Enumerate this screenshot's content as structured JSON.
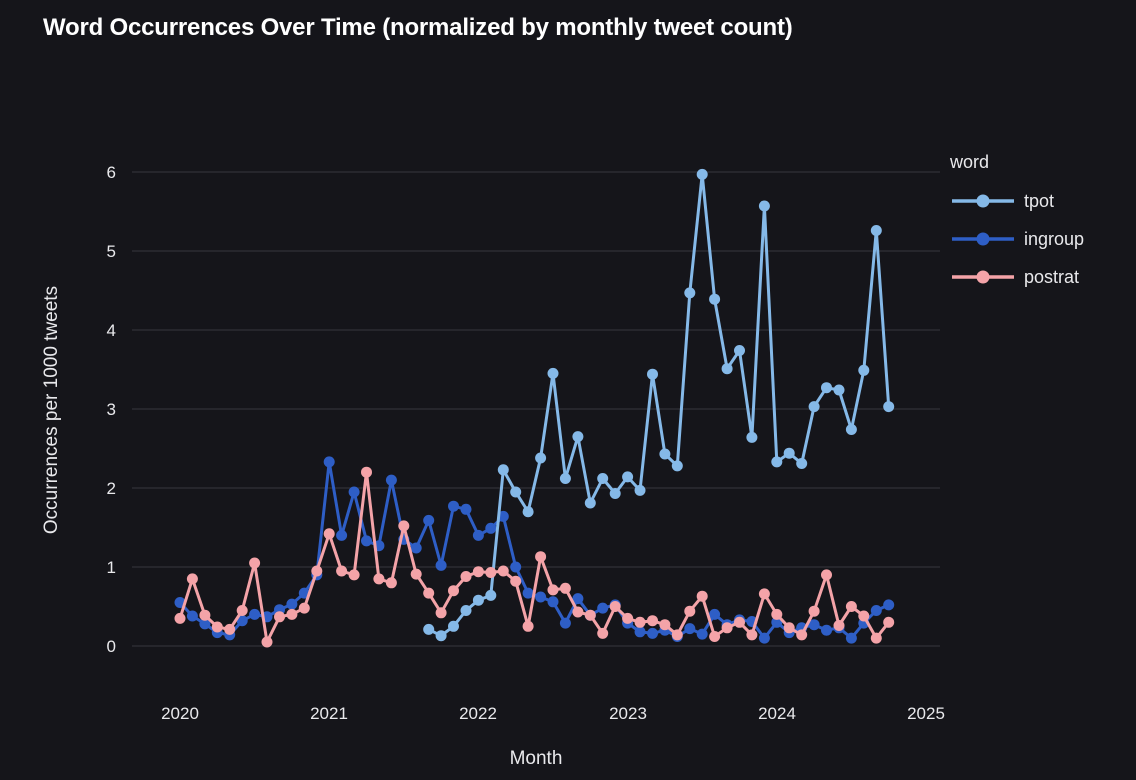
{
  "title": "Word Occurrences Over Time (normalized by monthly tweet count)",
  "colors": {
    "background": "#15151a",
    "grid": "#37373e",
    "text": "#e9e9ec",
    "title_text": "#ffffff"
  },
  "chart_data": {
    "type": "line",
    "title": "Word Occurrences Over Time (normalized by monthly tweet count)",
    "xlabel": "Month",
    "ylabel": "Occurrences per 1000 tweets",
    "x_ticks": [
      "2020",
      "2021",
      "2022",
      "2023",
      "2024",
      "2025"
    ],
    "y_ticks": [
      0,
      1,
      2,
      3,
      4,
      5,
      6
    ],
    "ylim": [
      0,
      6
    ],
    "xlim_years": [
      2020,
      2025
    ],
    "grid": "horizontal",
    "legend_title": "word",
    "legend_position": "right",
    "series_colors": {
      "tpot": "#85b9e8",
      "ingroup": "#2e5ec6",
      "postrat": "#f4a3a8"
    },
    "series": [
      {
        "name": "tpot",
        "start_month": "2021-09",
        "values": [
          0.21,
          0.13,
          0.25,
          0.45,
          0.58,
          0.64,
          2.23,
          1.95,
          1.7,
          2.38,
          3.45,
          2.12,
          2.65,
          1.81,
          2.12,
          1.93,
          2.14,
          1.97,
          3.44,
          2.43,
          2.28,
          4.47,
          5.97,
          4.39,
          3.51,
          3.74,
          2.64,
          5.57,
          2.33,
          2.44,
          2.31,
          3.03,
          3.27,
          3.24,
          2.74,
          3.49,
          5.26,
          3.03
        ]
      },
      {
        "name": "ingroup",
        "start_month": "2020-01",
        "values": [
          0.55,
          0.38,
          0.28,
          0.17,
          0.14,
          0.32,
          0.4,
          0.37,
          0.46,
          0.53,
          0.67,
          0.9,
          2.33,
          1.4,
          1.95,
          1.33,
          1.27,
          2.1,
          1.35,
          1.24,
          1.59,
          1.02,
          1.77,
          1.73,
          1.4,
          1.49,
          1.64,
          1.0,
          0.67,
          0.62,
          0.56,
          0.29,
          0.6,
          0.39,
          0.48,
          0.52,
          0.29,
          0.18,
          0.16,
          0.2,
          0.12,
          0.22,
          0.15,
          0.4,
          0.27,
          0.33,
          0.31,
          0.1,
          0.3,
          0.17,
          0.23,
          0.27,
          0.2,
          0.23,
          0.1,
          0.29,
          0.45,
          0.52
        ]
      },
      {
        "name": "postrat",
        "start_month": "2020-01",
        "values": [
          0.35,
          0.85,
          0.39,
          0.24,
          0.21,
          0.45,
          1.05,
          0.05,
          0.37,
          0.4,
          0.48,
          0.95,
          1.42,
          0.95,
          0.9,
          2.2,
          0.85,
          0.8,
          1.52,
          0.91,
          0.67,
          0.42,
          0.7,
          0.88,
          0.94,
          0.93,
          0.95,
          0.82,
          0.25,
          1.13,
          0.71,
          0.73,
          0.43,
          0.39,
          0.16,
          0.5,
          0.35,
          0.3,
          0.32,
          0.27,
          0.14,
          0.44,
          0.63,
          0.12,
          0.23,
          0.3,
          0.14,
          0.66,
          0.4,
          0.23,
          0.14,
          0.44,
          0.9,
          0.26,
          0.5,
          0.38,
          0.1,
          0.3
        ]
      }
    ]
  }
}
